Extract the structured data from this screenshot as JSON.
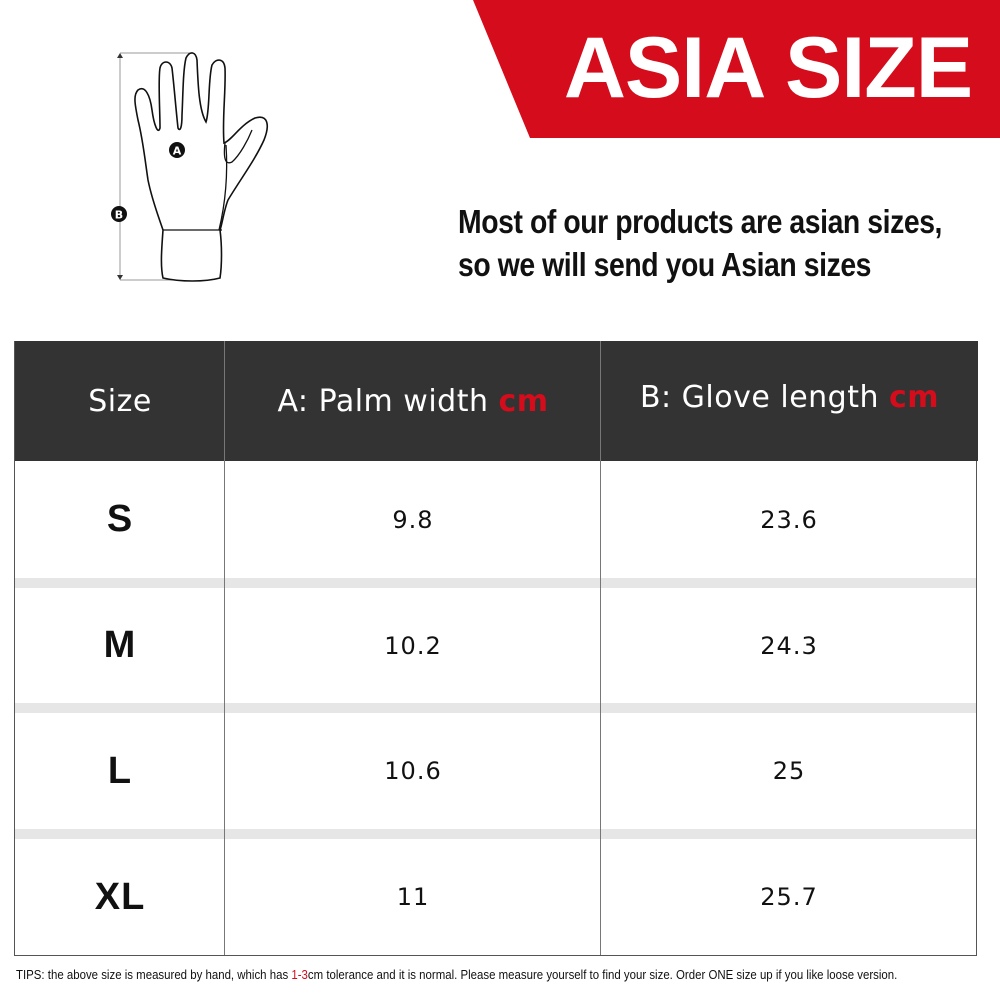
{
  "banner": {
    "title": "ASIA SIZE",
    "color": "#d50c1b"
  },
  "diagram": {
    "label_a": "A",
    "label_b": "B"
  },
  "note": {
    "line1": "Most of our products are asian sizes,",
    "line2": "so we will send you Asian sizes"
  },
  "table": {
    "headers": [
      {
        "label": "Size",
        "unit": ""
      },
      {
        "label": "A: Palm width",
        "unit": "cm"
      },
      {
        "label": "B: Glove length",
        "unit": "cm"
      }
    ],
    "rows": [
      {
        "size": "S",
        "palm": "9.8",
        "length": "23.6"
      },
      {
        "size": "M",
        "palm": "10.2",
        "length": "24.3"
      },
      {
        "size": "L",
        "palm": "10.6",
        "length": "25"
      },
      {
        "size": "XL",
        "palm": "11",
        "length": "25.7"
      }
    ]
  },
  "tips": {
    "before": "TIPS:  the above size is measured by hand, which has ",
    "highlight": "1-3",
    "after": "cm tolerance and it is normal. Please measure yourself to find your size. Order ONE size up if you like loose version."
  }
}
